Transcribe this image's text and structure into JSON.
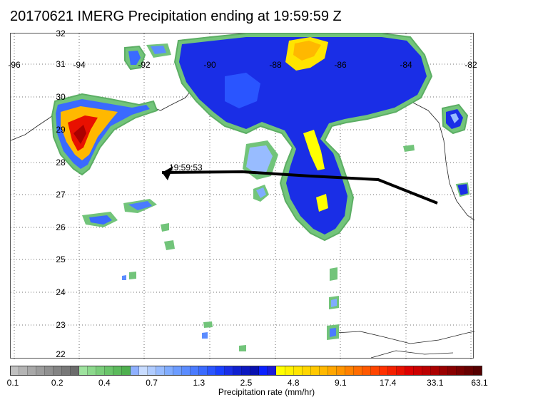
{
  "title": "20170621 IMERG Precipitation ending at 19:59:59 Z",
  "map": {
    "lon_labels": [
      "-96",
      "-94",
      "-92",
      "-90",
      "-88",
      "-86",
      "-84",
      "-82"
    ],
    "lat_labels": [
      "32",
      "31",
      "30",
      "29",
      "28",
      "27",
      "26",
      "25",
      "24",
      "23",
      "22"
    ],
    "track_time_label": "19:59:53"
  },
  "colorbar": {
    "label": "Precipitation rate (mm/hr)",
    "ticks": [
      "0.1",
      "0.2",
      "0.4",
      "0.7",
      "1.3",
      "2.5",
      "4.8",
      "9.1",
      "17.4",
      "33.1",
      "63.1"
    ],
    "colors": [
      "#c0c0c0",
      "#b4b4b4",
      "#a8a8a8",
      "#9c9c9c",
      "#909090",
      "#848484",
      "#787878",
      "#6c6c6c",
      "#9ee29e",
      "#8cd88c",
      "#7acd7a",
      "#6ac46a",
      "#5cba5c",
      "#4fb04f",
      "#8fb0ff",
      "#c8dcff",
      "#b0ccff",
      "#98bcff",
      "#80acff",
      "#6c9cff",
      "#5b8cff",
      "#4a7bff",
      "#3a6aff",
      "#2a55ff",
      "#1a40ff",
      "#1a2ee6",
      "#1020d0",
      "#0c18c0",
      "#0810b0",
      "#0a20ff",
      "#1b1bd8",
      "#ffff00",
      "#fff200",
      "#ffe400",
      "#ffd600",
      "#ffc800",
      "#ffb800",
      "#ffa600",
      "#ff9400",
      "#ff8000",
      "#ff6c00",
      "#ff5800",
      "#ff4400",
      "#ff3000",
      "#f42000",
      "#e81000",
      "#dc0000",
      "#cc0000",
      "#bb0000",
      "#aa0000",
      "#990000",
      "#880000",
      "#770000",
      "#660000",
      "#550000"
    ]
  }
}
